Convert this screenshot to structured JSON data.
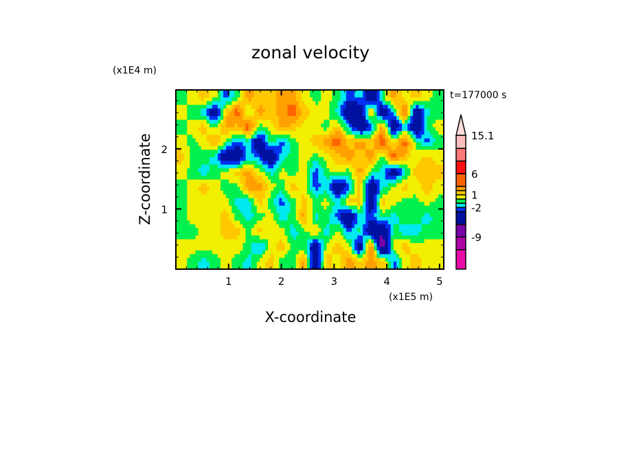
{
  "chart_data": {
    "type": "heatmap",
    "title": "zonal velocity",
    "xlabel": "X-coordinate",
    "ylabel": "Z-coordinate",
    "x_scale_label": "(x1E5 m)",
    "y_scale_label": "(x1E4 m)",
    "time_label": "t=177000 s",
    "xlim": [
      0,
      5.08
    ],
    "ylim": [
      0,
      2.98
    ],
    "x_ticks": [
      1,
      2,
      3,
      4,
      5
    ],
    "x_tick_labels": [
      "1",
      "2",
      "3",
      "4",
      "5"
    ],
    "y_ticks": [
      1,
      2
    ],
    "y_tick_labels": [
      "1",
      "2"
    ],
    "colorbar": {
      "levels": [
        -12,
        -9,
        -6,
        -3,
        -2,
        -1,
        0,
        1,
        2,
        3,
        6,
        9,
        12,
        15.1
      ],
      "labels": [
        {
          "value": 15.1,
          "text": "15.1"
        },
        {
          "value": 6,
          "text": "6"
        },
        {
          "value": 1,
          "text": "1"
        },
        {
          "value": -2,
          "text": "-2"
        },
        {
          "value": -9,
          "text": "-9"
        }
      ],
      "colors": [
        "#e80aa8",
        "#b000a8",
        "#7800a8",
        "#0010a0",
        "#0030f0",
        "#00e8f0",
        "#00f050",
        "#f0f000",
        "#ffc800",
        "#ffa000",
        "#ff6400",
        "#ff1010",
        "#ff7878",
        "#ffbebe",
        "#ffdcd8"
      ]
    },
    "grid_note_rows_top_to_bottom": true,
    "values": [
      [
        -0.5,
        0.5,
        1.5,
        0.5,
        -2.5,
        -0.5,
        2.5,
        1.5,
        1.5,
        2.5,
        2.5,
        0.5,
        -0.5,
        0.5,
        -0.5,
        -2.5,
        -1.5,
        -5,
        -0.5,
        2.5,
        0.5,
        1.5,
        0.5,
        -0.5
      ],
      [
        0.5,
        -0.5,
        -1.5,
        -5,
        1.5,
        4,
        -0.5,
        2.5,
        1.5,
        2.5,
        4,
        1.5,
        0.5,
        0.5,
        -1.5,
        -5,
        -5,
        1.5,
        -5,
        -1.5,
        4,
        -5,
        -1.5,
        -0.5
      ],
      [
        -0.5,
        0.5,
        1.5,
        -0.5,
        2.5,
        1.5,
        4,
        -0.5,
        0.5,
        2.5,
        1.5,
        0.5,
        0.5,
        -0.5,
        1.5,
        -1.5,
        -5,
        -2.5,
        2.5,
        -5,
        -1.5,
        -5,
        -0.5,
        0.5
      ],
      [
        0.5,
        -0.5,
        0.5,
        2.5,
        -0.5,
        -2.5,
        -1.5,
        -5,
        -0.5,
        -2.5,
        -0.5,
        0.5,
        1.5,
        2.5,
        4,
        1.5,
        2.5,
        1.5,
        4,
        0.5,
        4,
        -0.5,
        -2.5,
        -0.5
      ],
      [
        1.5,
        -0.5,
        -0.5,
        -1.5,
        -5,
        -5,
        -1.5,
        -2.5,
        -5,
        -1.5,
        -0.5,
        0.5,
        -0.5,
        0.5,
        1.5,
        2.5,
        1.5,
        2.5,
        -0.5,
        4,
        1.5,
        0.5,
        1.5,
        0.5
      ],
      [
        0.5,
        -0.5,
        -1.5,
        -0.5,
        0.5,
        1.5,
        2.5,
        0.5,
        -1.5,
        0.5,
        -0.5,
        0.5,
        -2.5,
        -0.5,
        0.5,
        -0.5,
        2.5,
        -0.5,
        -1.5,
        -5,
        -1.5,
        1.5,
        1.5,
        1.5
      ],
      [
        -0.5,
        0.5,
        1.5,
        0.5,
        -0.5,
        -0.5,
        2.5,
        2.5,
        0.5,
        -0.5,
        1.5,
        0.5,
        -2.5,
        -1.5,
        -5,
        -2.5,
        1.5,
        -5,
        -1.5,
        0.5,
        1.5,
        0.5,
        1.5,
        0.5
      ],
      [
        -0.5,
        0.5,
        0.5,
        0.5,
        0.5,
        -1.5,
        -1.5,
        1.5,
        -0.5,
        -2.5,
        -0.5,
        1.5,
        -0.5,
        0.5,
        -1.5,
        1.5,
        1.5,
        -5,
        1.5,
        0.5,
        -0.5,
        -0.5,
        0.5,
        -0.5
      ],
      [
        -0.5,
        0.5,
        0.5,
        0.5,
        1.5,
        -0.5,
        -1.5,
        -0.5,
        0.5,
        -1.5,
        -0.5,
        2.5,
        -1.5,
        -0.5,
        -2.5,
        -5,
        -1.5,
        -2.5,
        -0.5,
        -1.5,
        -0.5,
        -0.5,
        -1.5,
        -0.5
      ],
      [
        -0.5,
        -0.5,
        0.5,
        0.5,
        1.5,
        1.5,
        -0.5,
        1.5,
        0.5,
        0.5,
        -1.5,
        -0.5,
        1.5,
        -1.5,
        0.5,
        -2.5,
        -0.5,
        -5,
        -6,
        -0.5,
        -1.5,
        -1.5,
        -0.5,
        -0.5
      ],
      [
        0.5,
        0.5,
        0.5,
        0.5,
        0.5,
        0.5,
        -0.5,
        -2.5,
        0.5,
        1.5,
        -0.5,
        -0.5,
        -5,
        0.5,
        1.5,
        0.5,
        -5,
        4,
        -8,
        0.5,
        1.5,
        0.5,
        0.5,
        0.5
      ],
      [
        0.5,
        -0.5,
        -1.5,
        -0.5,
        0.5,
        -0.5,
        -1.5,
        0.5,
        1.5,
        -0.5,
        -0.5,
        2.5,
        -5,
        1.5,
        0.5,
        2.5,
        1.5,
        2.5,
        1.5,
        -2.5,
        0.5,
        1.5,
        0.5,
        0.5
      ]
    ]
  }
}
